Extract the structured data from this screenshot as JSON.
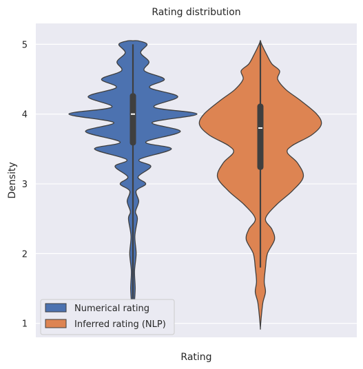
{
  "chart_data": {
    "type": "violin",
    "title": "Rating distribution",
    "xlabel": "Rating",
    "ylabel": "Density",
    "ylim": [
      0.8,
      5.3
    ],
    "yticks": [
      1,
      2,
      3,
      4,
      5
    ],
    "grid": true,
    "legend_position": "lower-left",
    "series": [
      {
        "name": "Numerical rating",
        "color": "#4c72b0",
        "median": 4.0,
        "q1": 3.55,
        "q3": 4.3,
        "whisker_low": 1.0,
        "whisker_high": 5.0,
        "density": [
          [
            1.0,
            0.012
          ],
          [
            1.25,
            0.02
          ],
          [
            1.5,
            0.035
          ],
          [
            1.75,
            0.025
          ],
          [
            2.0,
            0.05
          ],
          [
            2.25,
            0.03
          ],
          [
            2.5,
            0.07
          ],
          [
            2.6,
            0.04
          ],
          [
            2.75,
            0.09
          ],
          [
            2.9,
            0.05
          ],
          [
            3.0,
            0.2
          ],
          [
            3.1,
            0.08
          ],
          [
            3.25,
            0.28
          ],
          [
            3.35,
            0.1
          ],
          [
            3.5,
            0.6
          ],
          [
            3.6,
            0.2
          ],
          [
            3.75,
            0.74
          ],
          [
            3.88,
            0.3
          ],
          [
            4.0,
            1.0
          ],
          [
            4.1,
            0.33
          ],
          [
            4.25,
            0.7
          ],
          [
            4.38,
            0.26
          ],
          [
            4.5,
            0.49
          ],
          [
            4.62,
            0.18
          ],
          [
            4.75,
            0.25
          ],
          [
            4.88,
            0.12
          ],
          [
            5.0,
            0.22
          ],
          [
            5.05,
            0.08
          ]
        ]
      },
      {
        "name": "Inferred rating (NLP)",
        "color": "#dd8452",
        "median": 3.8,
        "q1": 3.2,
        "q3": 4.15,
        "whisker_low": 1.8,
        "whisker_high": 5.05,
        "density": [
          [
            0.93,
            0.0
          ],
          [
            1.1,
            0.015
          ],
          [
            1.3,
            0.04
          ],
          [
            1.45,
            0.08
          ],
          [
            1.6,
            0.06
          ],
          [
            1.8,
            0.08
          ],
          [
            2.0,
            0.11
          ],
          [
            2.2,
            0.22
          ],
          [
            2.35,
            0.18
          ],
          [
            2.5,
            0.08
          ],
          [
            2.7,
            0.25
          ],
          [
            2.9,
            0.5
          ],
          [
            3.1,
            0.67
          ],
          [
            3.3,
            0.58
          ],
          [
            3.45,
            0.42
          ],
          [
            3.55,
            0.5
          ],
          [
            3.7,
            0.8
          ],
          [
            3.85,
            0.95
          ],
          [
            4.0,
            0.88
          ],
          [
            4.2,
            0.62
          ],
          [
            4.35,
            0.4
          ],
          [
            4.5,
            0.27
          ],
          [
            4.62,
            0.3
          ],
          [
            4.72,
            0.18
          ],
          [
            4.85,
            0.1
          ],
          [
            5.0,
            0.02
          ],
          [
            5.05,
            0.0
          ]
        ]
      }
    ]
  }
}
